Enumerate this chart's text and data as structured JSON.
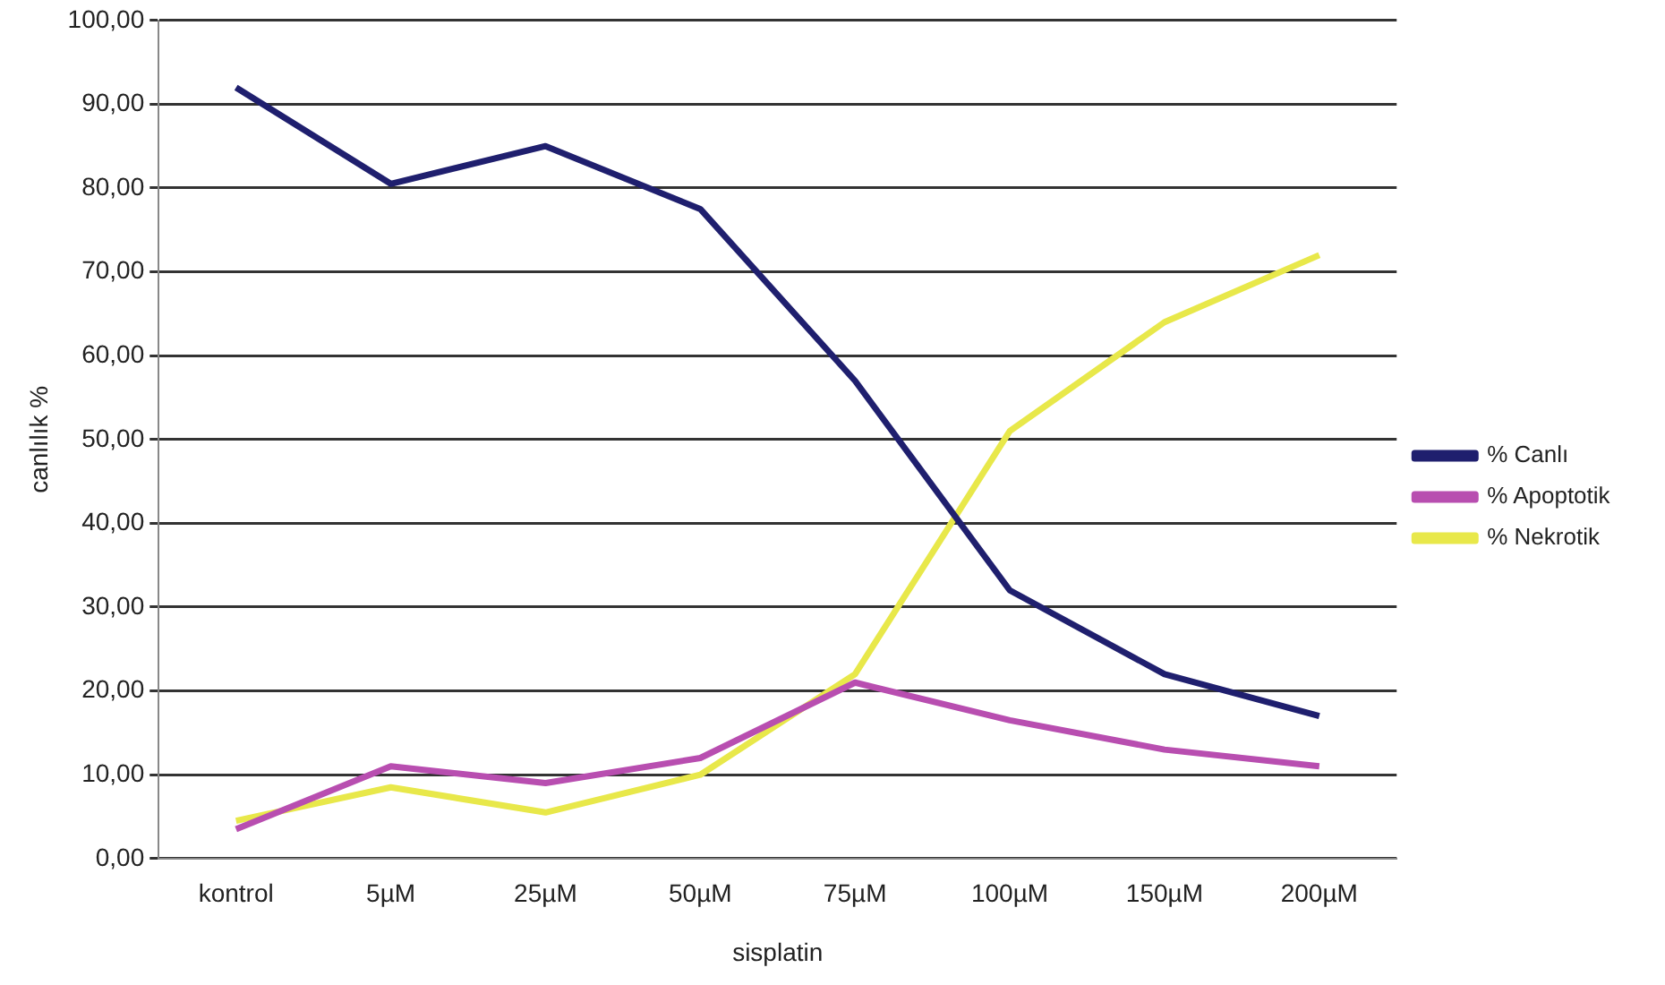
{
  "chart_data": {
    "type": "line",
    "xlabel": "sisplatin",
    "ylabel": "canlılık %",
    "categories": [
      "kontrol",
      "5µM",
      "25µM",
      "50µM",
      "75µM",
      "100µM",
      "150µM",
      "200µM"
    ],
    "series": [
      {
        "name": "% Canlı",
        "color": "#1f1f6e",
        "values": [
          92,
          80.5,
          85,
          77.5,
          57,
          32,
          22,
          17
        ]
      },
      {
        "name": "% Apoptotik",
        "color": "#b84eb0",
        "values": [
          3.5,
          11,
          9,
          12,
          21,
          16.5,
          13,
          11
        ]
      },
      {
        "name": "% Nekrotik",
        "color": "#e8e84a",
        "values": [
          4.5,
          8.5,
          5.5,
          10,
          22,
          51,
          64,
          72
        ]
      }
    ],
    "ylim": [
      0,
      100
    ],
    "yticks": [
      {
        "value": 0,
        "label": "0,00"
      },
      {
        "value": 10,
        "label": "10,00"
      },
      {
        "value": 20,
        "label": "20,00"
      },
      {
        "value": 30,
        "label": "30,00"
      },
      {
        "value": 40,
        "label": "40,00"
      },
      {
        "value": 50,
        "label": "50,00"
      },
      {
        "value": 60,
        "label": "60,00"
      },
      {
        "value": 70,
        "label": "70,00"
      },
      {
        "value": 80,
        "label": "80,00"
      },
      {
        "value": 90,
        "label": "90,00"
      },
      {
        "value": 100,
        "label": "100,00"
      }
    ],
    "grid": "y",
    "legend": "right",
    "marker": "none",
    "line_style": "solid"
  }
}
